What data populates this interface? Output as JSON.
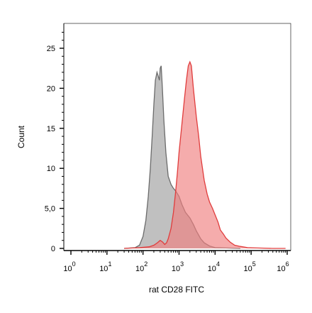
{
  "chart_data": {
    "type": "area",
    "xlabel": "rat CD28 FITC",
    "ylabel": "Count",
    "x_scale": "log",
    "xlim": [
      1,
      1000000
    ],
    "ylim": [
      0,
      28
    ],
    "x_tick_labels": [
      {
        "base": "10",
        "exp": "0"
      },
      {
        "base": "10",
        "exp": "1"
      },
      {
        "base": "10",
        "exp": "2"
      },
      {
        "base": "10",
        "exp": "3"
      },
      {
        "base": "10",
        "exp": "4"
      },
      {
        "base": "10",
        "exp": "5"
      },
      {
        "base": "10",
        "exp": "6"
      }
    ],
    "y_tick_labels": [
      "0",
      "5,0",
      "10",
      "15",
      "20",
      "25"
    ],
    "y_ticks": [
      0,
      5,
      10,
      15,
      20,
      25
    ],
    "series": [
      {
        "fill": "#bdbdbd",
        "stroke": "#6b6b6b",
        "fill_opacity": 0.95,
        "points": [
          [
            30,
            0
          ],
          [
            60,
            0.1
          ],
          [
            80,
            0.4
          ],
          [
            100,
            1.5
          ],
          [
            120,
            3.5
          ],
          [
            140,
            6.5
          ],
          [
            160,
            10
          ],
          [
            180,
            14
          ],
          [
            200,
            18
          ],
          [
            220,
            21
          ],
          [
            245,
            22
          ],
          [
            265,
            21.5
          ],
          [
            285,
            21
          ],
          [
            300,
            22.5
          ],
          [
            320,
            22.8
          ],
          [
            345,
            20
          ],
          [
            380,
            16
          ],
          [
            430,
            12
          ],
          [
            500,
            9
          ],
          [
            600,
            8
          ],
          [
            700,
            7.5
          ],
          [
            800,
            7.2
          ],
          [
            1000,
            6.5
          ],
          [
            1200,
            5.5
          ],
          [
            1500,
            4.5
          ],
          [
            2000,
            3.8
          ],
          [
            2500,
            3
          ],
          [
            3000,
            2.2
          ],
          [
            4000,
            1.2
          ],
          [
            5000,
            0.7
          ],
          [
            7000,
            0.3
          ],
          [
            10000,
            0.1
          ],
          [
            20000,
            0.05
          ],
          [
            50000,
            0
          ]
        ]
      },
      {
        "fill": "#f08080",
        "stroke": "#e03c3c",
        "fill_opacity": 0.65,
        "points": [
          [
            30,
            0
          ],
          [
            80,
            0.1
          ],
          [
            150,
            0.2
          ],
          [
            200,
            0.4
          ],
          [
            250,
            0.7
          ],
          [
            300,
            1.0
          ],
          [
            350,
            0.8
          ],
          [
            400,
            0.5
          ],
          [
            450,
            0.7
          ],
          [
            500,
            1.2
          ],
          [
            600,
            2.5
          ],
          [
            700,
            4.5
          ],
          [
            800,
            7
          ],
          [
            900,
            9.5
          ],
          [
            1000,
            12
          ],
          [
            1200,
            15.5
          ],
          [
            1400,
            18.5
          ],
          [
            1600,
            21
          ],
          [
            1800,
            22.8
          ],
          [
            2000,
            23.3
          ],
          [
            2200,
            22.8
          ],
          [
            2500,
            20
          ],
          [
            3000,
            16.5
          ],
          [
            3500,
            14
          ],
          [
            4000,
            11.5
          ],
          [
            5000,
            8.5
          ],
          [
            6000,
            6.8
          ],
          [
            7000,
            5.8
          ],
          [
            8500,
            5
          ],
          [
            10000,
            4.2
          ],
          [
            12000,
            3.3
          ],
          [
            14000,
            2.3
          ],
          [
            17000,
            1.8
          ],
          [
            20000,
            1.3
          ],
          [
            26000,
            0.8
          ],
          [
            35000,
            0.4
          ],
          [
            50000,
            0.25
          ],
          [
            80000,
            0.1
          ],
          [
            150000,
            0.05
          ],
          [
            400000,
            0
          ],
          [
            900000,
            0
          ]
        ]
      }
    ]
  }
}
